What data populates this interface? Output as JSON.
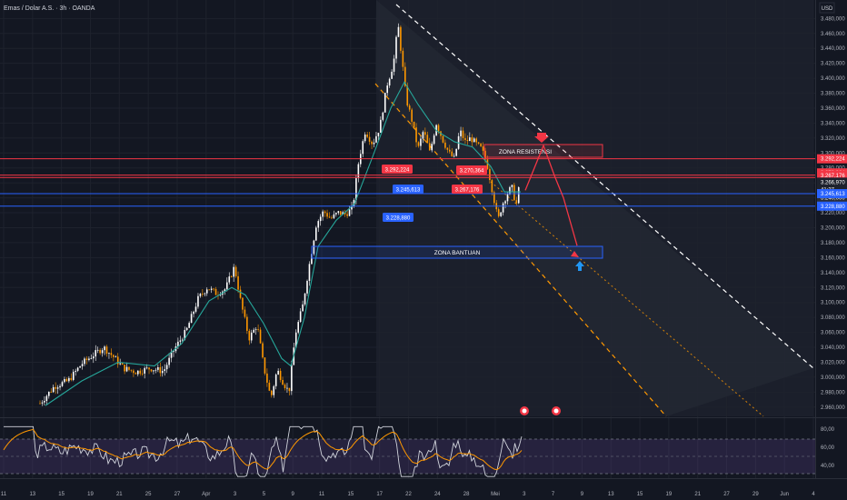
{
  "header": {
    "symbol_title": "Emas / Dolar A.S. · 3h · OANDA",
    "currency": "USD"
  },
  "chart_data": {
    "type": "candlestick",
    "main": {
      "ylim": [
        2950,
        3495
      ],
      "y_ticks": [
        2960,
        2980,
        3000,
        3020,
        3040,
        3060,
        3080,
        3100,
        3120,
        3140,
        3160,
        3180,
        3200,
        3220,
        3240,
        3260,
        3280,
        3300,
        3320,
        3340,
        3360,
        3380,
        3400,
        3420,
        3440,
        3460,
        3480
      ],
      "y_tick_labels": [
        "2.960,000",
        "2.980,000",
        "3.000,000",
        "3.020,000",
        "3.040,000",
        "3.060,000",
        "3.080,000",
        "3.100,000",
        "3.120,000",
        "3.140,000",
        "3.160,000",
        "3.180,000",
        "3.200,000",
        "3.220,000",
        "3.240,000",
        "3.260,000",
        "3.280,000",
        "3.300,000",
        "3.320,000",
        "3.340,000",
        "3.360,000",
        "3.380,000",
        "3.400,000",
        "3.420,000",
        "3.440,000",
        "3.460,000",
        "3.480,000"
      ],
      "candle_colors": {
        "up": "#ffffff",
        "down": "#ff9800",
        "moving_average": "#26a69a"
      },
      "close_path": [
        {
          "x": 44,
          "y": 2965
        },
        {
          "x": 60,
          "y": 2988
        },
        {
          "x": 75,
          "y": 2995
        },
        {
          "x": 90,
          "y": 3018
        },
        {
          "x": 103,
          "y": 3030
        },
        {
          "x": 114,
          "y": 3040
        },
        {
          "x": 125,
          "y": 3027
        },
        {
          "x": 136,
          "y": 3012
        },
        {
          "x": 150,
          "y": 3007
        },
        {
          "x": 165,
          "y": 3012
        },
        {
          "x": 180,
          "y": 3008
        },
        {
          "x": 192,
          "y": 3038
        },
        {
          "x": 205,
          "y": 3062
        },
        {
          "x": 218,
          "y": 3105
        },
        {
          "x": 228,
          "y": 3120
        },
        {
          "x": 238,
          "y": 3112
        },
        {
          "x": 248,
          "y": 3118
        },
        {
          "x": 258,
          "y": 3148
        },
        {
          "x": 265,
          "y": 3100
        },
        {
          "x": 274,
          "y": 3052
        },
        {
          "x": 283,
          "y": 3070
        },
        {
          "x": 290,
          "y": 3015
        },
        {
          "x": 298,
          "y": 2972
        },
        {
          "x": 305,
          "y": 3010
        },
        {
          "x": 312,
          "y": 2992
        },
        {
          "x": 318,
          "y": 2980
        },
        {
          "x": 325,
          "y": 3058
        },
        {
          "x": 333,
          "y": 3095
        },
        {
          "x": 340,
          "y": 3148
        },
        {
          "x": 348,
          "y": 3205
        },
        {
          "x": 356,
          "y": 3222
        },
        {
          "x": 364,
          "y": 3212
        },
        {
          "x": 372,
          "y": 3220
        },
        {
          "x": 380,
          "y": 3218
        },
        {
          "x": 388,
          "y": 3226
        },
        {
          "x": 395,
          "y": 3292
        },
        {
          "x": 402,
          "y": 3330
        },
        {
          "x": 410,
          "y": 3312
        },
        {
          "x": 418,
          "y": 3335
        },
        {
          "x": 426,
          "y": 3392
        },
        {
          "x": 433,
          "y": 3420
        },
        {
          "x": 438,
          "y": 3472
        },
        {
          "x": 442,
          "y": 3428
        },
        {
          "x": 447,
          "y": 3372
        },
        {
          "x": 453,
          "y": 3345
        },
        {
          "x": 460,
          "y": 3305
        },
        {
          "x": 466,
          "y": 3330
        },
        {
          "x": 473,
          "y": 3300
        },
        {
          "x": 480,
          "y": 3340
        },
        {
          "x": 487,
          "y": 3318
        },
        {
          "x": 494,
          "y": 3300
        },
        {
          "x": 500,
          "y": 3292
        },
        {
          "x": 506,
          "y": 3330
        },
        {
          "x": 512,
          "y": 3315
        },
        {
          "x": 518,
          "y": 3320
        },
        {
          "x": 524,
          "y": 3312
        },
        {
          "x": 530,
          "y": 3305
        },
        {
          "x": 536,
          "y": 3285
        },
        {
          "x": 542,
          "y": 3248
        },
        {
          "x": 548,
          "y": 3210
        },
        {
          "x": 553,
          "y": 3232
        },
        {
          "x": 558,
          "y": 3245
        },
        {
          "x": 563,
          "y": 3255
        },
        {
          "x": 568,
          "y": 3230
        },
        {
          "x": 573,
          "y": 3267
        }
      ],
      "moving_average_path": [
        {
          "x": 50,
          "y": 2962
        },
        {
          "x": 90,
          "y": 2995
        },
        {
          "x": 130,
          "y": 3020
        },
        {
          "x": 170,
          "y": 3015
        },
        {
          "x": 200,
          "y": 3045
        },
        {
          "x": 230,
          "y": 3102
        },
        {
          "x": 255,
          "y": 3120
        },
        {
          "x": 270,
          "y": 3110
        },
        {
          "x": 290,
          "y": 3072
        },
        {
          "x": 310,
          "y": 3025
        },
        {
          "x": 320,
          "y": 3015
        },
        {
          "x": 335,
          "y": 3080
        },
        {
          "x": 350,
          "y": 3175
        },
        {
          "x": 370,
          "y": 3210
        },
        {
          "x": 390,
          "y": 3232
        },
        {
          "x": 410,
          "y": 3295
        },
        {
          "x": 430,
          "y": 3360
        },
        {
          "x": 445,
          "y": 3395
        },
        {
          "x": 460,
          "y": 3365
        },
        {
          "x": 480,
          "y": 3330
        },
        {
          "x": 500,
          "y": 3315
        },
        {
          "x": 520,
          "y": 3308
        },
        {
          "x": 540,
          "y": 3282
        },
        {
          "x": 555,
          "y": 3248
        },
        {
          "x": 573,
          "y": 3248
        }
      ],
      "horizontal_levels": [
        {
          "value": 3292.224,
          "label": "3.292,224",
          "color": "#f23645"
        },
        {
          "value": 3270.364,
          "label": "3.270,364",
          "color": "#f23645"
        },
        {
          "value": 3267.176,
          "label": "3.267,176",
          "color": "#f23645"
        },
        {
          "value": 3245.613,
          "label": "3.245,613",
          "color": "#2962ff"
        },
        {
          "value": 3228.88,
          "label": "3.228,880",
          "color": "#2962ff"
        }
      ],
      "current_price": {
        "value": 3266.97,
        "label": "3.266,970",
        "countdown": "41:37"
      },
      "hidden_price_label": "3.240,000",
      "zones": [
        {
          "label": "ZONA RESISTENSI",
          "from": 3302,
          "to": 3318,
          "color": "#f23645"
        },
        {
          "label": "ZONA BANTUAN",
          "from": 3168,
          "to": 3183,
          "color": "#2962ff"
        }
      ],
      "level_tags": [
        {
          "label": "3.292,224",
          "color": "#f23645"
        },
        {
          "label": "3.270,364",
          "color": "#f23645"
        },
        {
          "label": "3.267,176",
          "color": "#f23645"
        },
        {
          "label": "3.245,613",
          "color": "#2962ff"
        },
        {
          "label": "3.228,880",
          "color": "#2962ff"
        }
      ],
      "projection_path": [
        {
          "x": 578,
          "y": 3250
        },
        {
          "x": 598,
          "y": 3310
        },
        {
          "x": 610,
          "y": 3270
        },
        {
          "x": 620,
          "y": 3240
        },
        {
          "x": 635,
          "y": 3176
        }
      ]
    },
    "x_tick_labels": [
      "11",
      "13",
      "15",
      "19",
      "21",
      "25",
      "27",
      "Apr",
      "3",
      "5",
      "9",
      "11",
      "15",
      "17",
      "22",
      "24",
      "28",
      "Mei",
      "3",
      "7",
      "9",
      "13",
      "15",
      "19",
      "21",
      "27",
      "29",
      "Jun",
      "4"
    ],
    "rsi": {
      "ylim": [
        20,
        90
      ],
      "y_tick_labels": [
        "80,00",
        "60,00",
        "40,00"
      ],
      "overbought": 70,
      "oversold": 30,
      "middle": 50
    }
  }
}
